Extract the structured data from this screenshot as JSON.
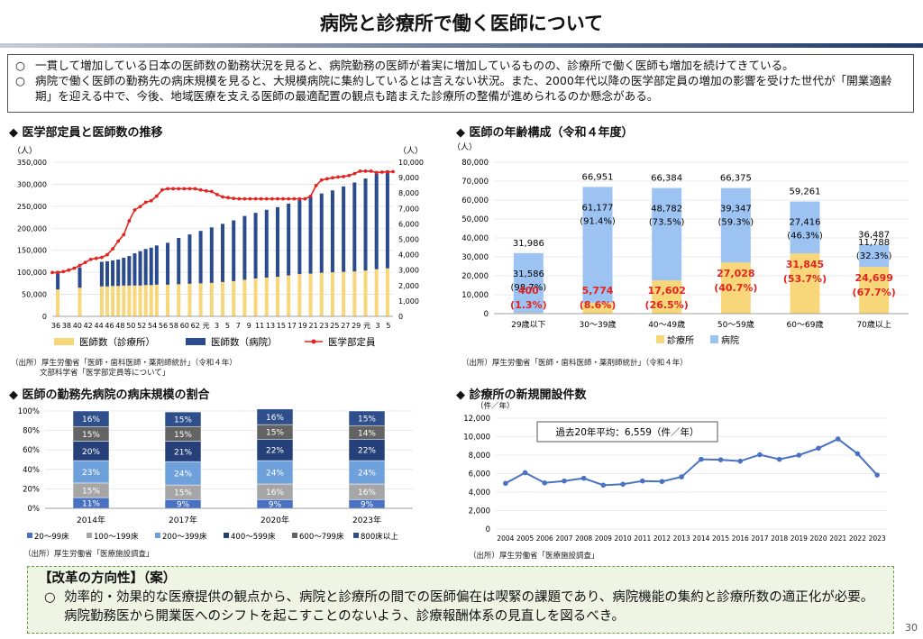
{
  "title": "病院と診療所で働く医師について",
  "intro": {
    "bullet": "○",
    "lines": [
      "一貫して増加している日本の医師数の勤務状況を見ると、病院勤務の医師が着実に増加しているものの、診療所で働く医師も増加を続けてきている。",
      "病院で働く医師の勤務先の病床規模を見ると、大規模病院に集約しているとは言えない状況。また、2000年代以降の医学部定員の増加の影響を受けた世代が「開業適齢期」を迎える中で、今後、地域医療を支える医師の最適配置の観点も踏まえた診療所の整備が進められるのか懸念がある。"
    ]
  },
  "sections": {
    "s1": "◆ 医学部定員と医師数の推移",
    "s2": "◆ 医師の年齢構成（令和４年度）",
    "s3": "◆ 医師の勤務先病院の病床規模の割合",
    "s4": "◆ 診療所の新規開設件数"
  },
  "sources": {
    "s1a": "（出所）厚生労働省「医師・歯科医師・薬剤師統計」（令和４年）",
    "s1b": "文部科学省「医学部定員等について」",
    "s2": "（出所）厚生労働省「医師・歯科医師・薬剤師統計」（令和４年）",
    "s3": "（出所）厚生労働省「医療施設調査」",
    "s4": "（出所）厚生労働省「医療施設調査」"
  },
  "reform": {
    "title": "【改革の方向性】（案）",
    "bullet": "○",
    "text": "効率的・効果的な医療提供の観点から、病院と診療所の間での医師偏在は喫緊の課題であり、病院機能の集約と診療所数の適正化が必要。病院勤務医から開業医へのシフトを起こすことのないよう、診療報酬体系の見直しを図るべき。"
  },
  "page_number": "30",
  "colors": {
    "clinic": "#f8d77a",
    "hospital": "#2a4b8d",
    "quota": "#e4231f",
    "hosp_light": "#9dc3f3"
  },
  "chart_data": [
    {
      "type": "bar",
      "id": "doctors_trend",
      "left_unit": "（人）",
      "right_unit": "（人）",
      "ylim": [
        0,
        350000
      ],
      "yticks": [
        0,
        50000,
        100000,
        150000,
        200000,
        250000,
        300000,
        350000
      ],
      "y2lim": [
        0,
        10000
      ],
      "y2ticks": [
        0,
        1000,
        2000,
        3000,
        4000,
        5000,
        6000,
        7000,
        8000,
        9000,
        10000
      ],
      "x_tick_labels": [
        "36",
        "38",
        "40",
        "42",
        "44",
        "46",
        "48",
        "50",
        "52",
        "54",
        "56",
        "58",
        "60",
        "62",
        "元",
        "3",
        "5",
        "7",
        "9",
        "11",
        "13",
        "15",
        "17",
        "19",
        "21",
        "23",
        "25",
        "27",
        "29",
        "元",
        "3",
        "5"
      ],
      "legend": [
        "医師数（診療所）",
        "医師数（病院）",
        "医学部定員"
      ],
      "bar_years": [
        1962,
        1966,
        1970,
        1971,
        1972,
        1973,
        1974,
        1975,
        1976,
        1977,
        1978,
        1979,
        1980,
        1982,
        1984,
        1986,
        1988,
        1990,
        1992,
        1994,
        1996,
        1998,
        2000,
        2002,
        2004,
        2006,
        2008,
        2010,
        2012,
        2014,
        2016,
        2018,
        2020,
        2022
      ],
      "clinic": [
        61000,
        65000,
        68000,
        68000,
        69000,
        69000,
        70000,
        70000,
        70000,
        70000,
        71000,
        71000,
        72000,
        72000,
        73000,
        74000,
        75000,
        76000,
        78000,
        80000,
        83000,
        86000,
        88000,
        90000,
        93000,
        96000,
        97000,
        99000,
        100000,
        101000,
        102000,
        104000,
        107000,
        109000
      ],
      "hospital": [
        42000,
        46000,
        56000,
        57000,
        58000,
        60000,
        63000,
        67000,
        73000,
        78000,
        82000,
        85000,
        89000,
        95000,
        105000,
        112000,
        119000,
        126000,
        132000,
        138000,
        145000,
        149000,
        154000,
        158000,
        163000,
        168000,
        174000,
        180000,
        186000,
        194000,
        202000,
        209000,
        217000,
        222000
      ],
      "quota_years": [
        1961,
        1962,
        1963,
        1964,
        1965,
        1966,
        1967,
        1968,
        1969,
        1970,
        1971,
        1972,
        1973,
        1974,
        1975,
        1976,
        1977,
        1978,
        1979,
        1980,
        1981,
        1982,
        1983,
        1984,
        1985,
        1986,
        1987,
        1988,
        1989,
        1990,
        1991,
        1992,
        1993,
        1994,
        1995,
        1996,
        1997,
        1998,
        1999,
        2000,
        2001,
        2002,
        2003,
        2004,
        2005,
        2006,
        2007,
        2008,
        2009,
        2010,
        2011,
        2012,
        2013,
        2014,
        2015,
        2016,
        2017,
        2018,
        2019,
        2020,
        2021,
        2022,
        2023
      ],
      "quota": [
        2840,
        2840,
        2900,
        3000,
        3120,
        3300,
        3500,
        3700,
        3760,
        3820,
        4000,
        4380,
        4880,
        5300,
        6200,
        6900,
        7120,
        7400,
        7500,
        7800,
        8200,
        8280,
        8280,
        8280,
        8280,
        8280,
        8280,
        8200,
        8140,
        8100,
        7900,
        7750,
        7700,
        7650,
        7625,
        7625,
        7625,
        7625,
        7625,
        7625,
        7625,
        7625,
        7625,
        7625,
        7625,
        7625,
        7625,
        7793,
        8486,
        8846,
        8923,
        8991,
        9041,
        9069,
        9134,
        9262,
        9420,
        9419,
        9420,
        9330,
        9357,
        9374,
        9384
      ]
    },
    {
      "type": "bar",
      "id": "age_structure",
      "unit": "（人）",
      "ylim": [
        0,
        80000
      ],
      "yticks": [
        0,
        10000,
        20000,
        30000,
        40000,
        50000,
        60000,
        70000,
        80000
      ],
      "categories": [
        "29歳以下",
        "30～39歳",
        "40～49歳",
        "50～59歳",
        "60～69歳",
        "70歳以上"
      ],
      "totals": [
        "31,986",
        "66,951",
        "66,384",
        "66,375",
        "59,261",
        "36,487"
      ],
      "clinic": [
        400,
        5774,
        17602,
        27028,
        31845,
        24699
      ],
      "hospital": [
        31586,
        61177,
        48782,
        39347,
        27416,
        11788
      ],
      "clinic_labels": [
        "400",
        "5,774",
        "17,602",
        "27,028",
        "31,845",
        "24,699"
      ],
      "clinic_pct": [
        "(1.3%)",
        "(8.6%)",
        "(26.5%)",
        "(40.7%)",
        "(53.7%)",
        "(67.7%)"
      ],
      "hospital_labels": [
        "31,586",
        "61,177",
        "48,782",
        "39,347",
        "27,416",
        "11,788"
      ],
      "hospital_pct": [
        "(98.7%)",
        "(91.4%)",
        "(73.5%)",
        "(59.3%)",
        "(46.3%)",
        "(32.3%)"
      ],
      "legend": [
        "診療所",
        "病院"
      ]
    },
    {
      "type": "bar",
      "id": "bed_scale",
      "stacked": "percent",
      "ylim": [
        0,
        100
      ],
      "ytick_labels": [
        "0%",
        "20%",
        "40%",
        "60%",
        "80%",
        "100%"
      ],
      "categories": [
        "2014年",
        "2017年",
        "2020年",
        "2023年"
      ],
      "series": [
        {
          "name": "20～99床",
          "color": "#4a72c4",
          "values": [
            11,
            9,
            9,
            9
          ],
          "labels": [
            "11%",
            "9%",
            "9%",
            "9%"
          ]
        },
        {
          "name": "100～199床",
          "color": "#a6a6a6",
          "values": [
            15,
            15,
            16,
            16
          ],
          "labels": [
            "15%",
            "15%",
            "16%",
            "16%"
          ]
        },
        {
          "name": "200～399床",
          "color": "#6ea1dc",
          "values": [
            23,
            24,
            24,
            24
          ],
          "labels": [
            "23%",
            "24%",
            "24%",
            "24%"
          ]
        },
        {
          "name": "400～599床",
          "color": "#26417a",
          "values": [
            20,
            21,
            22,
            22
          ],
          "labels": [
            "20%",
            "21%",
            "22%",
            "22%"
          ]
        },
        {
          "name": "600～799床",
          "color": "#636363",
          "values": [
            15,
            15,
            15,
            14
          ],
          "labels": [
            "15%",
            "15%",
            "15%",
            "14%"
          ]
        },
        {
          "name": "800床以上",
          "color": "#2e4f8c",
          "values": [
            16,
            15,
            16,
            15
          ],
          "labels": [
            "16%",
            "15%",
            "16%",
            "15%"
          ]
        }
      ]
    },
    {
      "type": "line",
      "id": "new_clinics",
      "unit": "（件／年）",
      "ylim": [
        0,
        12000
      ],
      "yticks": [
        0,
        2000,
        4000,
        6000,
        8000,
        10000,
        12000
      ],
      "x": [
        "2004",
        "2005",
        "2006",
        "2007",
        "2008",
        "2009",
        "2010",
        "2011",
        "2012",
        "2013",
        "2014",
        "2015",
        "2016",
        "2017",
        "2018",
        "2019",
        "2020",
        "2021",
        "2022",
        "2023"
      ],
      "values": [
        4950,
        6100,
        5000,
        5200,
        5500,
        4750,
        4850,
        5200,
        5150,
        5650,
        7550,
        7500,
        7350,
        8050,
        7550,
        8000,
        8750,
        9750,
        8150,
        5850
      ],
      "annotation": "過去20年平均：6,559（件／年）",
      "color": "#4a72c4"
    }
  ]
}
